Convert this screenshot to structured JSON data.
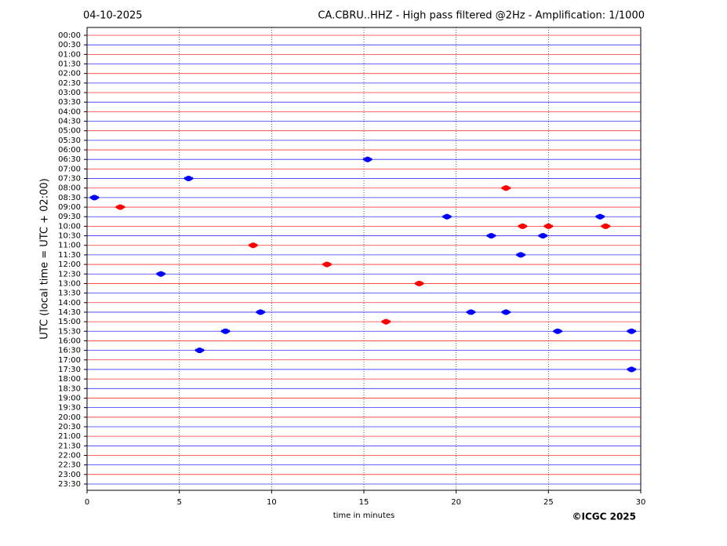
{
  "chart_data": {
    "type": "helicorder",
    "date": "04-10-2025",
    "title": "CA.CBRU..HHZ - High pass filtered @2Hz - Amplification: 1/1000",
    "x_label": "time in minutes",
    "y_label": "UTC (local time = UTC + 02:00)",
    "copyright": "©ICGC 2025",
    "rows": [
      "00:00",
      "00:30",
      "01:00",
      "01:30",
      "02:00",
      "02:30",
      "03:00",
      "03:30",
      "04:00",
      "04:30",
      "05:00",
      "05:30",
      "06:00",
      "06:30",
      "07:00",
      "07:30",
      "08:00",
      "08:30",
      "09:00",
      "09:30",
      "10:00",
      "10:30",
      "11:00",
      "11:30",
      "12:00",
      "12:30",
      "13:00",
      "13:30",
      "14:00",
      "14:30",
      "15:00",
      "15:30",
      "16:00",
      "16:30",
      "17:00",
      "17:30",
      "18:00",
      "18:30",
      "19:00",
      "19:30",
      "20:00",
      "20:30",
      "21:00",
      "21:30",
      "22:00",
      "22:30",
      "23:00",
      "23:30"
    ],
    "trace_colors": [
      "#ff0000",
      "#0000ff"
    ],
    "xlim": [
      0,
      30
    ],
    "xticks": [
      0,
      5,
      10,
      15,
      20,
      25,
      30
    ],
    "grid": true,
    "events": [
      {
        "row": "06:30",
        "minute": 15.2
      },
      {
        "row": "07:30",
        "minute": 5.5
      },
      {
        "row": "08:00",
        "minute": 22.7
      },
      {
        "row": "08:30",
        "minute": 0.4
      },
      {
        "row": "09:00",
        "minute": 1.8
      },
      {
        "row": "09:30",
        "minute": 19.5
      },
      {
        "row": "09:30",
        "minute": 27.8
      },
      {
        "row": "10:00",
        "minute": 23.6
      },
      {
        "row": "10:00",
        "minute": 25.0
      },
      {
        "row": "10:00",
        "minute": 28.1
      },
      {
        "row": "10:30",
        "minute": 21.9
      },
      {
        "row": "10:30",
        "minute": 24.7
      },
      {
        "row": "11:00",
        "minute": 9.0
      },
      {
        "row": "11:30",
        "minute": 23.5
      },
      {
        "row": "12:00",
        "minute": 13.0
      },
      {
        "row": "12:30",
        "minute": 4.0
      },
      {
        "row": "13:00",
        "minute": 18.0
      },
      {
        "row": "14:30",
        "minute": 9.4
      },
      {
        "row": "14:30",
        "minute": 20.8
      },
      {
        "row": "14:30",
        "minute": 22.7
      },
      {
        "row": "15:00",
        "minute": 16.2
      },
      {
        "row": "15:30",
        "minute": 7.5
      },
      {
        "row": "15:30",
        "minute": 25.5
      },
      {
        "row": "15:30",
        "minute": 29.5
      },
      {
        "row": "16:30",
        "minute": 6.1
      },
      {
        "row": "17:30",
        "minute": 29.5
      }
    ]
  }
}
